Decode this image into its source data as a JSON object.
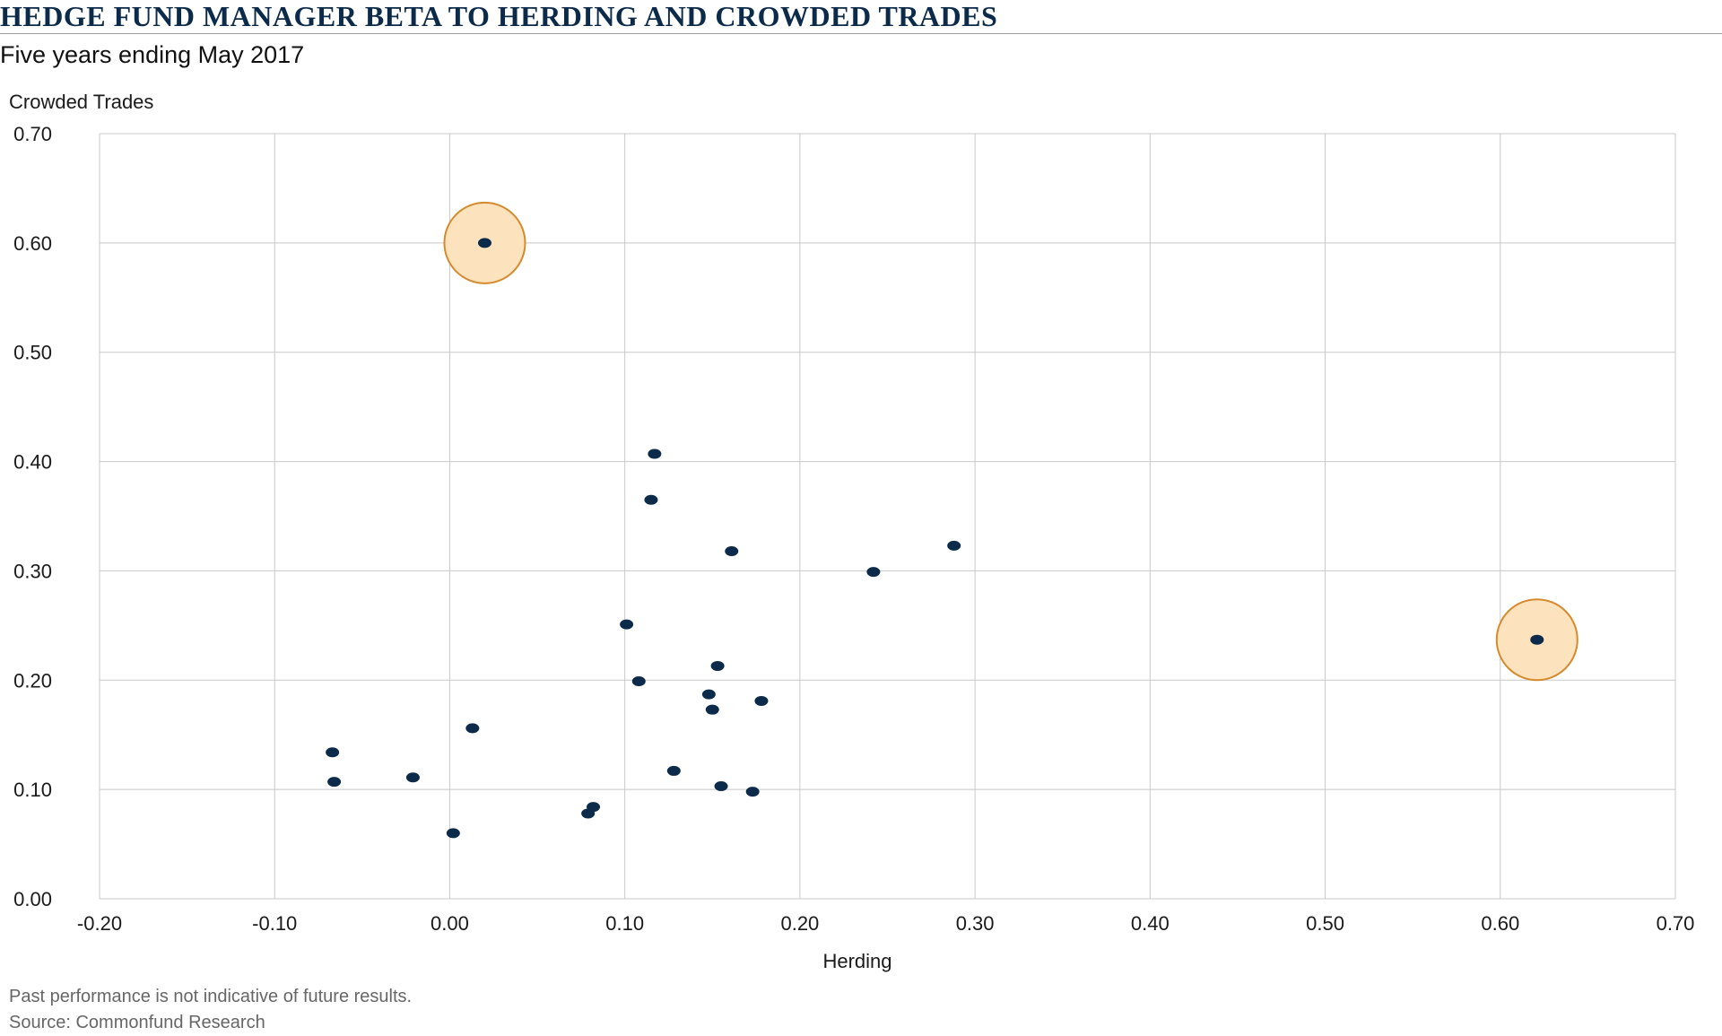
{
  "header": {
    "title": "HEDGE FUND MANAGER BETA TO HERDING AND CROWDED TRADES",
    "subtitle": "Five years ending May 2017"
  },
  "footer": {
    "disclaimer": "Past performance is not indicative of future results.",
    "source": "Source: Commonfund Research"
  },
  "colors": {
    "point": "#0c2a4a",
    "highlight_fill": "#fde3bd",
    "highlight_stroke": "#d68a2e",
    "grid": "#c8c8c8",
    "axis_text": "#1a1a1a"
  },
  "chart_data": {
    "type": "scatter",
    "xlabel": "Herding",
    "ylabel": "Crowded Trades",
    "xlim": [
      -0.2,
      0.7
    ],
    "ylim": [
      0.0,
      0.7
    ],
    "x_ticks": [
      "-0.20",
      "-0.10",
      "0.00",
      "0.10",
      "0.20",
      "0.30",
      "0.40",
      "0.50",
      "0.60",
      "0.70"
    ],
    "y_ticks": [
      "0.00",
      "0.10",
      "0.20",
      "0.30",
      "0.40",
      "0.50",
      "0.60",
      "0.70"
    ],
    "grid": true,
    "points": [
      {
        "x": 0.02,
        "y": 0.6,
        "highlight": true
      },
      {
        "x": 0.117,
        "y": 0.407
      },
      {
        "x": 0.115,
        "y": 0.365
      },
      {
        "x": 0.161,
        "y": 0.318
      },
      {
        "x": 0.242,
        "y": 0.299
      },
      {
        "x": 0.288,
        "y": 0.323
      },
      {
        "x": 0.101,
        "y": 0.251
      },
      {
        "x": 0.153,
        "y": 0.213
      },
      {
        "x": 0.108,
        "y": 0.199
      },
      {
        "x": 0.148,
        "y": 0.187
      },
      {
        "x": 0.15,
        "y": 0.173
      },
      {
        "x": 0.178,
        "y": 0.181
      },
      {
        "x": 0.013,
        "y": 0.156
      },
      {
        "x": -0.067,
        "y": 0.134
      },
      {
        "x": -0.066,
        "y": 0.107
      },
      {
        "x": -0.021,
        "y": 0.111
      },
      {
        "x": 0.128,
        "y": 0.117
      },
      {
        "x": 0.155,
        "y": 0.103
      },
      {
        "x": 0.173,
        "y": 0.098
      },
      {
        "x": 0.082,
        "y": 0.084
      },
      {
        "x": 0.079,
        "y": 0.078
      },
      {
        "x": 0.002,
        "y": 0.06
      },
      {
        "x": 0.621,
        "y": 0.237,
        "highlight": true
      }
    ]
  }
}
